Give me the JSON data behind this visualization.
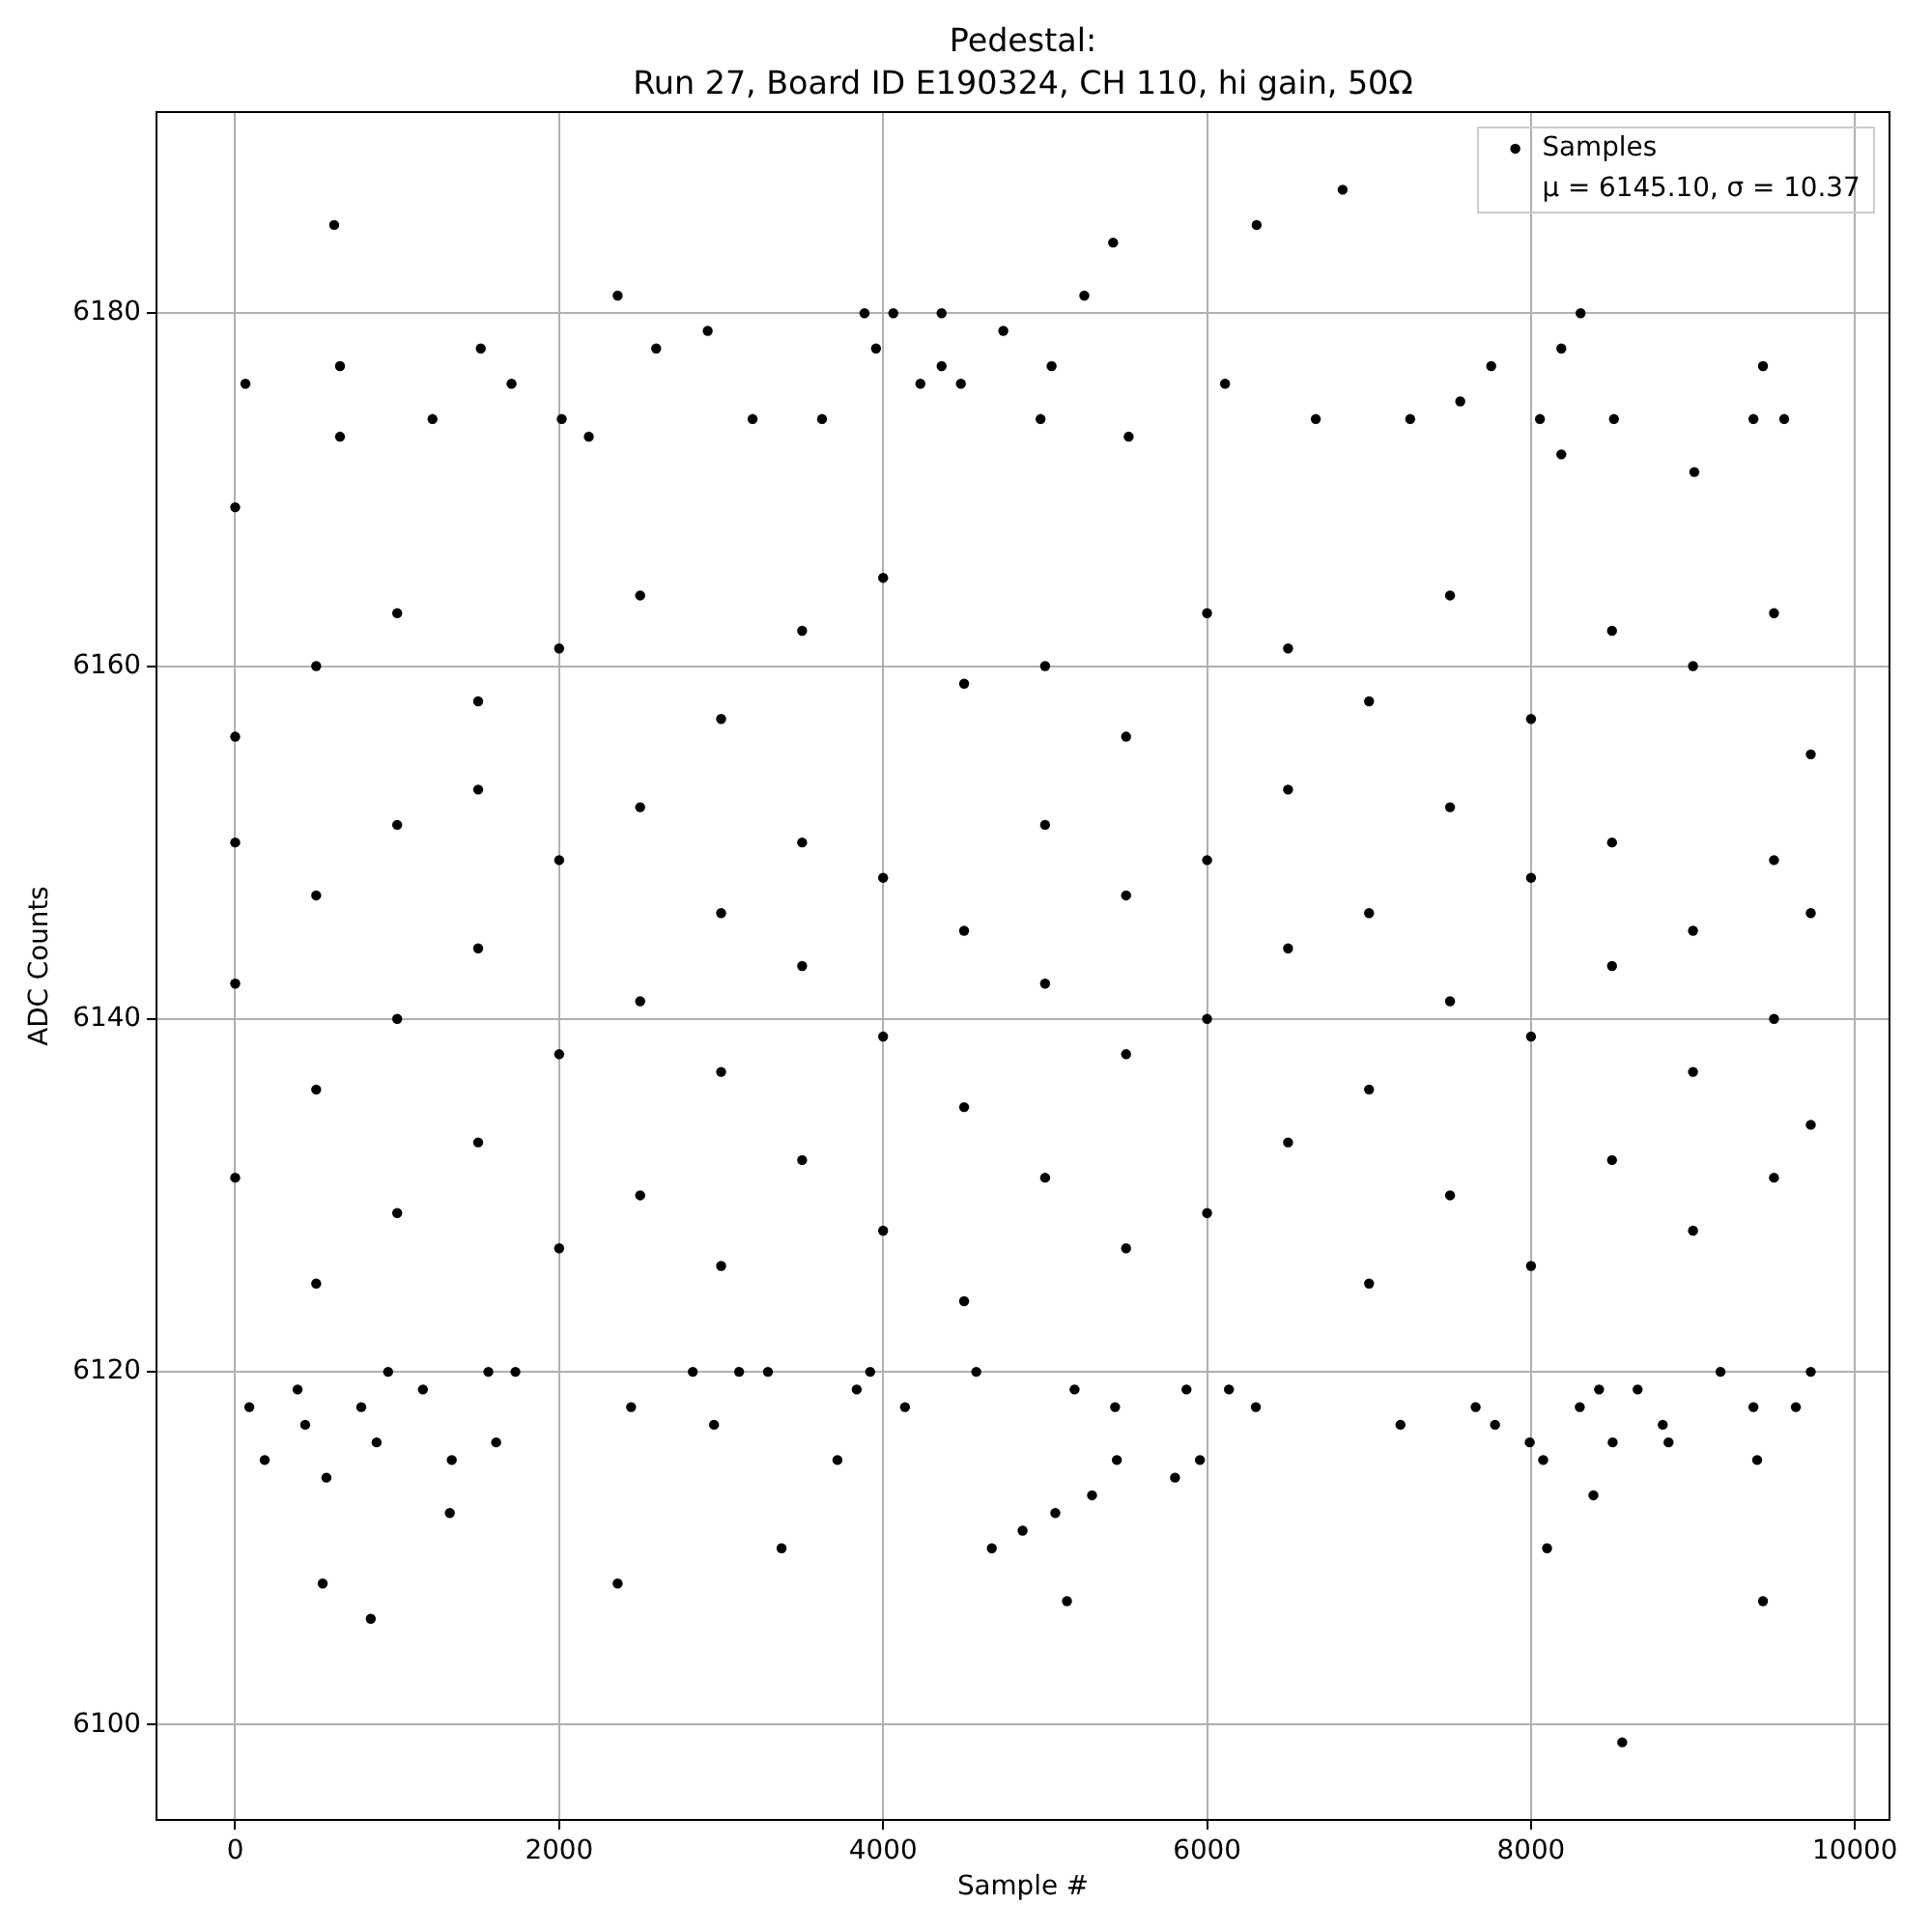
{
  "chart_data": {
    "type": "scatter",
    "title": "Pedestal:",
    "subtitle": "Run 27, Board ID E190324, CH 110, hi gain, 50Ω",
    "xlabel": "Sample #",
    "ylabel": "ADC Counts",
    "annotations": [
      "μ = 6145.10, σ = 10.37"
    ],
    "xlim": [
      -486,
      10213
    ],
    "ylim": [
      6094.6,
      6191.4
    ],
    "xticks": [
      0,
      2000,
      4000,
      6000,
      8000,
      10000
    ],
    "yticks": [
      6100,
      6120,
      6140,
      6160,
      6180
    ],
    "grid": true,
    "legend": "top right",
    "marker": "circle",
    "series": [
      {
        "name": "Samples",
        "color": "#000000",
        "x": [
          0,
          0,
          0,
          0,
          0,
          63,
          87,
          182,
          385,
          432,
          500,
          500,
          500,
          500,
          540,
          563,
          611,
          647,
          647,
          778,
          837,
          873,
          944,
          1000,
          1000,
          1000,
          1000,
          1159,
          1218,
          1325,
          1337,
          1500,
          1500,
          1500,
          1500,
          1516,
          1563,
          1611,
          1706,
          1730,
          2000,
          2000,
          2000,
          2000,
          2016,
          2183,
          2361,
          2361,
          2444,
          2500,
          2500,
          2500,
          2500,
          2599,
          2825,
          2917,
          2956,
          3000,
          3000,
          3000,
          3000,
          3111,
          3194,
          3289,
          3373,
          3500,
          3500,
          3500,
          3500,
          3623,
          3718,
          3837,
          3885,
          3920,
          3956,
          4000,
          4000,
          4000,
          4000,
          4063,
          4135,
          4230,
          4361,
          4361,
          4480,
          4500,
          4500,
          4500,
          4500,
          4575,
          4671,
          4742,
          4861,
          4972,
          5000,
          5000,
          5000,
          5000,
          5040,
          5063,
          5135,
          5182,
          5242,
          5290,
          5420,
          5432,
          5443,
          5500,
          5500,
          5500,
          5500,
          5516,
          5802,
          5873,
          5956,
          6000,
          6000,
          6000,
          6000,
          6111,
          6135,
          6301,
          6306,
          6500,
          6500,
          6500,
          6500,
          6671,
          6837,
          7000,
          7000,
          7000,
          7000,
          7194,
          7254,
          7500,
          7500,
          7500,
          7500,
          7563,
          7658,
          7754,
          7778,
          7992,
          8000,
          8000,
          8000,
          8000,
          8055,
          8075,
          8099,
          8187,
          8187,
          8301,
          8306,
          8385,
          8420,
          8500,
          8500,
          8500,
          8500,
          8504,
          8512,
          8563,
          8658,
          8813,
          8849,
          9000,
          9000,
          9000,
          9000,
          9008,
          9170,
          9373,
          9373,
          9396,
          9432,
          9432,
          9500,
          9500,
          9500,
          9500,
          9563,
          9635,
          9727,
          9727,
          9727,
          9727
        ],
        "values": [
          6131,
          6142,
          6150,
          6156,
          6169,
          6176,
          6118,
          6115,
          6119,
          6117,
          6125,
          6136,
          6147,
          6160,
          6108,
          6114,
          6185,
          6177,
          6173,
          6118,
          6106,
          6116,
          6120,
          6129,
          6140,
          6151,
          6163,
          6119,
          6174,
          6112,
          6115,
          6133,
          6144,
          6153,
          6158,
          6178,
          6120,
          6116,
          6176,
          6120,
          6127,
          6138,
          6149,
          6161,
          6174,
          6173,
          6181,
          6108,
          6118,
          6130,
          6141,
          6152,
          6164,
          6178,
          6120,
          6179,
          6117,
          6126,
          6137,
          6146,
          6157,
          6120,
          6174,
          6120,
          6110,
          6132,
          6143,
          6150,
          6162,
          6174,
          6115,
          6119,
          6180,
          6120,
          6178,
          6128,
          6139,
          6148,
          6165,
          6180,
          6118,
          6176,
          6180,
          6177,
          6176,
          6124,
          6135,
          6145,
          6159,
          6120,
          6110,
          6179,
          6111,
          6174,
          6131,
          6142,
          6151,
          6160,
          6177,
          6112,
          6107,
          6119,
          6181,
          6113,
          6184,
          6118,
          6115,
          6127,
          6138,
          6147,
          6156,
          6173,
          6114,
          6119,
          6115,
          6129,
          6140,
          6149,
          6163,
          6176,
          6119,
          6118,
          6185,
          6133,
          6144,
          6153,
          6161,
          6174,
          6187,
          6125,
          6136,
          6146,
          6158,
          6117,
          6174,
          6130,
          6141,
          6152,
          6164,
          6175,
          6118,
          6177,
          6117,
          6116,
          6126,
          6139,
          6148,
          6157,
          6174,
          6115,
          6110,
          6178,
          6172,
          6118,
          6180,
          6113,
          6119,
          6132,
          6143,
          6150,
          6162,
          6116,
          6174,
          6099,
          6119,
          6117,
          6116,
          6128,
          6137,
          6145,
          6160,
          6171,
          6120,
          6118,
          6174,
          6115,
          6177,
          6107,
          6131,
          6140,
          6149,
          6163,
          6174,
          6118,
          6134,
          6146,
          6155,
          6120
        ]
      }
    ]
  }
}
